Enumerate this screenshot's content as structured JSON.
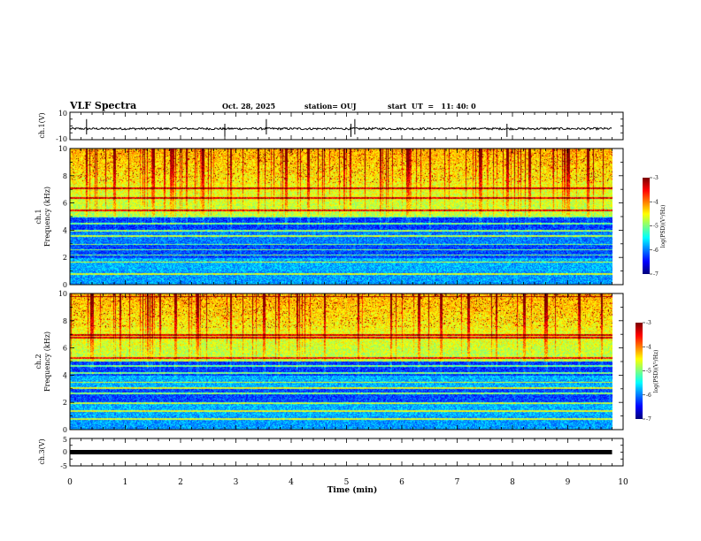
{
  "header": {
    "title": "VLF Spectra",
    "date": "Oct. 28, 2025",
    "station": "station= OUJ",
    "start": "start  UT  =   11: 40: 0"
  },
  "colors": {
    "background": "#ffffff",
    "axis": "#000000",
    "waveform": "#000000",
    "colormap": [
      "#00007f",
      "#0000ff",
      "#007fff",
      "#00ffff",
      "#7fff7f",
      "#ffff00",
      "#ff7f00",
      "#ff0000",
      "#7f0000"
    ]
  },
  "chart_data": [
    {
      "type": "line",
      "name": "ch1-waveform",
      "ylabel": "ch.1(V)",
      "ylim": [
        -10,
        10
      ],
      "yticks": [
        "10",
        "-10"
      ],
      "xlim": [
        0,
        10
      ],
      "mean_level": -2,
      "noise_amplitude": 0.8,
      "spikes_min": [
        0.3,
        2.8,
        3.55,
        5.08,
        5.15,
        7.9
      ]
    },
    {
      "type": "heatmap",
      "name": "ch1-spectrogram",
      "ylabel": "ch.1\nFrequency (kHz)",
      "ylabel_parts": [
        "ch.1",
        "Frequency (kHz)"
      ],
      "ylim": [
        0,
        10
      ],
      "yticks": [
        "0",
        "2",
        "4",
        "6",
        "8",
        "10"
      ],
      "xlim": [
        0,
        10
      ],
      "data_xmax": 9.8,
      "colorbar": {
        "label": "log(PSD)(V²/Hz)",
        "range": [
          -7,
          -3
        ],
        "ticks": [
          "-3",
          "-4",
          "-5",
          "-6",
          "-7"
        ]
      },
      "horizontal_lines_khz": [
        0.8,
        1.7,
        2.2,
        2.6,
        3.0,
        3.6,
        4.0,
        4.5,
        5.0,
        5.5,
        6.4,
        7.1
      ],
      "vertical_lines_min": [
        0.3,
        0.8,
        1.5,
        1.7,
        2.1,
        2.4,
        2.9,
        3.4,
        3.9,
        4.3,
        4.95,
        5.6,
        6.1,
        6.5,
        7.4,
        7.9,
        8.3,
        9.0,
        9.35
      ]
    },
    {
      "type": "heatmap",
      "name": "ch2-spectrogram",
      "ylabel": "ch.2\nFrequency (kHz)",
      "ylabel_parts": [
        "ch.2",
        "Frequency (kHz)"
      ],
      "ylim": [
        0,
        10
      ],
      "yticks": [
        "0",
        "2",
        "4",
        "6",
        "8",
        "10"
      ],
      "xlim": [
        0,
        10
      ],
      "data_xmax": 9.8,
      "colorbar": {
        "label": "log(PSD)(V²/Hz)",
        "range": [
          -7,
          -3
        ],
        "ticks": [
          "-3",
          "-4",
          "-5",
          "-6",
          "-7"
        ]
      },
      "horizontal_lines_khz": [
        0.8,
        1.4,
        2.0,
        2.7,
        3.1,
        3.5,
        4.2,
        4.7,
        5.3,
        6.8,
        7.0,
        9.8
      ],
      "vertical_lines_min": [
        0.4,
        0.9,
        1.4,
        1.9,
        2.3,
        2.9,
        3.5,
        4.1,
        4.6,
        5.2,
        5.8,
        6.3,
        6.7,
        7.2,
        7.7,
        8.2,
        8.6,
        9.2,
        9.6
      ]
    },
    {
      "type": "line",
      "name": "ch3-waveform",
      "ylabel": "ch.3(V)",
      "ylim": [
        -5,
        5
      ],
      "yticks": [
        "5",
        "0",
        "-5"
      ],
      "xlim": [
        0,
        10
      ],
      "level": 0
    }
  ],
  "xaxis": {
    "label": "Time (min)",
    "ticks": [
      "0",
      "1",
      "2",
      "3",
      "4",
      "5",
      "6",
      "7",
      "8",
      "9",
      "10"
    ],
    "range": [
      0,
      10
    ]
  }
}
